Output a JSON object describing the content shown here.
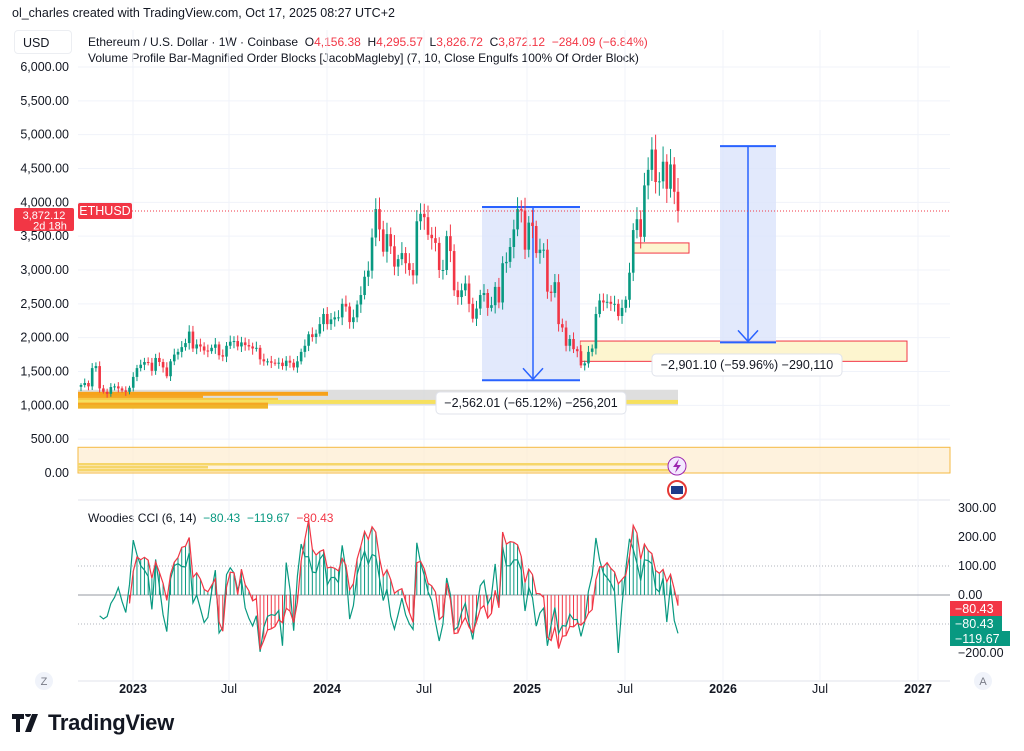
{
  "credit": "ol_charles created with TradingView.com, Oct 17, 2025 08:27 UTC+2",
  "currency": "USD",
  "legend": {
    "symbol": "Ethereum / U.S. Dollar · 1W · Coinbase",
    "o_label": "O",
    "o": "4,156.38",
    "h_label": "H",
    "h": "4,295.57",
    "l_label": "L",
    "l": "3,826.72",
    "c_label": "C",
    "c": "3,872.12",
    "change": "−284.09 (−6.84%)",
    "indicator": "Volume Profile Bar-Magnified Order Blocks [JacobMagleby] (7, 10, Close Engulfs 100% Of Order Block)"
  },
  "price_tag": {
    "price": "3,872.12",
    "countdown": "2d 18h",
    "symbol": "ETHUSD"
  },
  "measurements": [
    {
      "label": "−2,562.01 (−65.12%) −256,201",
      "from": 3930,
      "to": 1370
    },
    {
      "label": "−2,901.10 (−59.96%) −290,110",
      "from": 4830,
      "to": 1930
    }
  ],
  "cci": {
    "name": "Woodies CCI (6, 14)",
    "v1": "−80.43",
    "v2": "−119.67",
    "v3": "−80.43",
    "tags": [
      "−80.43",
      "−80.43",
      "−119.67"
    ],
    "axis_ticks": [
      "300.00",
      "200.00",
      "100.00",
      "0.00",
      "−200.00"
    ]
  },
  "bottom": {
    "left_btn": "Z",
    "right_btn": "A"
  },
  "logo": "TradingView",
  "colors": {
    "up": "#089981",
    "down": "#f23645",
    "measure": "#2962ff",
    "measure_fill": "#dbe4fb",
    "ob_fill": "#fdf5cf",
    "ob_border": "#f23645"
  },
  "chart_data": {
    "type": "candlestick",
    "interval": "1W",
    "ylim": [
      0,
      6000
    ],
    "y_ticks": [
      "6,000.00",
      "5,500.00",
      "5,000.00",
      "4,500.00",
      "4,000.00",
      "3,500.00",
      "3,000.00",
      "2,500.00",
      "2,000.00",
      "1,500.00",
      "1,000.00",
      "500.00",
      "0.00"
    ],
    "x_ticks": [
      "2023",
      "Jul",
      "2024",
      "Jul",
      "2025",
      "Jul",
      "2026",
      "Jul",
      "2027"
    ],
    "start": "2022-09",
    "closes": [
      1300,
      1330,
      1280,
      1550,
      1580,
      1250,
      1200,
      1170,
      1270,
      1280,
      1250,
      1220,
      1200,
      1260,
      1420,
      1550,
      1600,
      1640,
      1630,
      1510,
      1700,
      1640,
      1560,
      1430,
      1650,
      1750,
      1790,
      1860,
      1920,
      2090,
      1840,
      1900,
      1870,
      1810,
      1800,
      1850,
      1900,
      1740,
      1720,
      1880,
      1940,
      1950,
      1870,
      1930,
      1890,
      1870,
      1840,
      1850,
      1680,
      1650,
      1650,
      1630,
      1620,
      1630,
      1580,
      1660,
      1630,
      1560,
      1650,
      1790,
      1880,
      2050,
      2010,
      2060,
      2200,
      2350,
      2200,
      2270,
      2300,
      2300,
      2500,
      2460,
      2230,
      2300,
      2490,
      2630,
      2900,
      2990,
      3480,
      3900,
      3600,
      3270,
      3530,
      3350,
      3050,
      3160,
      3250,
      3100,
      3000,
      2920,
      3720,
      3830,
      3780,
      3520,
      3470,
      3400,
      3000,
      3000,
      3500,
      3280,
      2700,
      2600,
      2700,
      2800,
      2500,
      2280,
      2430,
      2630,
      2660,
      2440,
      2480,
      2750,
      2520,
      3100,
      3120,
      3340,
      3600,
      3900,
      3880,
      3300,
      3700,
      3650,
      3250,
      3300,
      3300,
      2680,
      2660,
      2820,
      2200,
      2150,
      1880,
      1980,
      1830,
      1800,
      1590,
      1620,
      1790,
      1840,
      2350,
      2550,
      2520,
      2530,
      2500,
      2500,
      2320,
      2440,
      2560,
      2960,
      3590,
      3750,
      3490,
      4250,
      4480,
      4780,
      4300,
      4310,
      4600,
      4200,
      4560,
      4156,
      3872
    ],
    "order_blocks": [
      [
        1650,
        1950
      ],
      [
        3250,
        3400
      ],
      [
        0,
        380
      ]
    ],
    "volume_profile_range": [
      1000,
      1250
    ]
  }
}
